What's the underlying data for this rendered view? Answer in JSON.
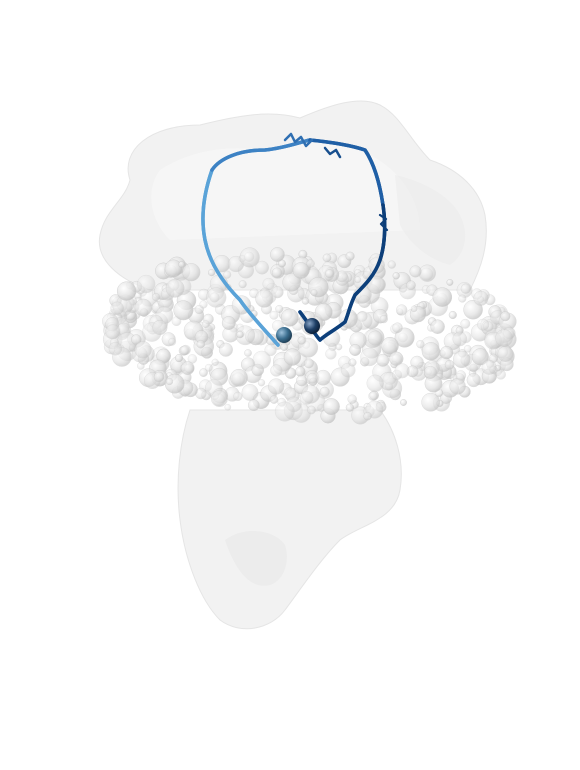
{
  "scene": {
    "background": "#ffffff",
    "surface_color": "#e6e6e6",
    "sphere_color": "#d9d9d9",
    "path_colors": [
      "#5aa3d8",
      "#3d82c4",
      "#1f5fa6",
      "#0d3f7a"
    ],
    "start_marker_color": "#3b6e8f",
    "end_marker_color": "#1e3f66"
  }
}
